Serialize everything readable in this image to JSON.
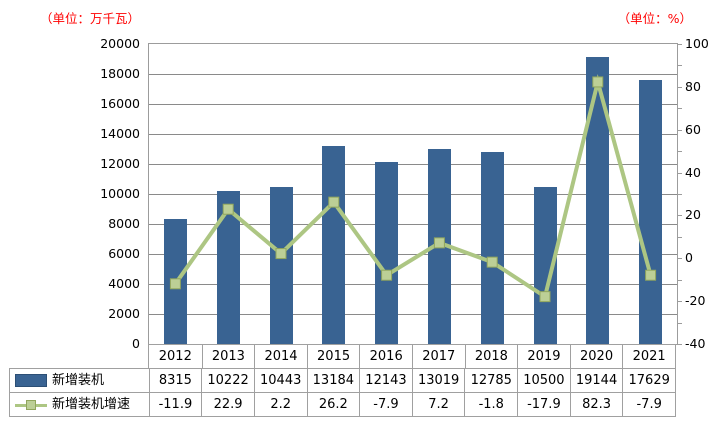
{
  "units": {
    "left": "（单位：万千瓦）",
    "right": "（单位：%）"
  },
  "chart_data": {
    "type": "combo",
    "categories": [
      "2012",
      "2013",
      "2014",
      "2015",
      "2016",
      "2017",
      "2018",
      "2019",
      "2020",
      "2021"
    ],
    "series": [
      {
        "name": "新增装机",
        "type": "bar",
        "axis": "left",
        "values": [
          8315,
          10222,
          10443,
          13184,
          12143,
          13019,
          12785,
          10500,
          19144,
          17629
        ],
        "color": "#396392"
      },
      {
        "name": "新增装机增速",
        "type": "line",
        "axis": "right",
        "values": [
          -11.9,
          22.9,
          2.2,
          26.2,
          -7.9,
          7.2,
          -1.8,
          -17.9,
          82.3,
          -7.9
        ],
        "color": "#adc683",
        "marker_fill": "#bccf96",
        "marker_stroke": "#91a65d"
      }
    ],
    "left_axis": {
      "title": "（单位：万千瓦）",
      "min": 0,
      "max": 20000,
      "major_step": 2000,
      "tick_labels": [
        "0",
        "2000",
        "4000",
        "6000",
        "8000",
        "10000",
        "12000",
        "14000",
        "16000",
        "18000",
        "20000"
      ]
    },
    "right_axis": {
      "title": "（单位：%）",
      "min": -40,
      "max": 100,
      "major_step": 20,
      "minor_step": 10,
      "tick_labels": [
        "-40",
        "-20",
        "0",
        "20",
        "40",
        "60",
        "80",
        "100"
      ]
    },
    "grid": true,
    "legend_position": "data-table-left",
    "data_table_shown": true
  },
  "colors": {
    "bar": "#396392",
    "line": "#adc683",
    "marker_fill": "#bccf96",
    "marker_stroke": "#91a65d",
    "gridline": "#8a8a8a",
    "border": "#a0a0a0",
    "unit_text": "#ff0000",
    "axis_text": "#000000"
  }
}
